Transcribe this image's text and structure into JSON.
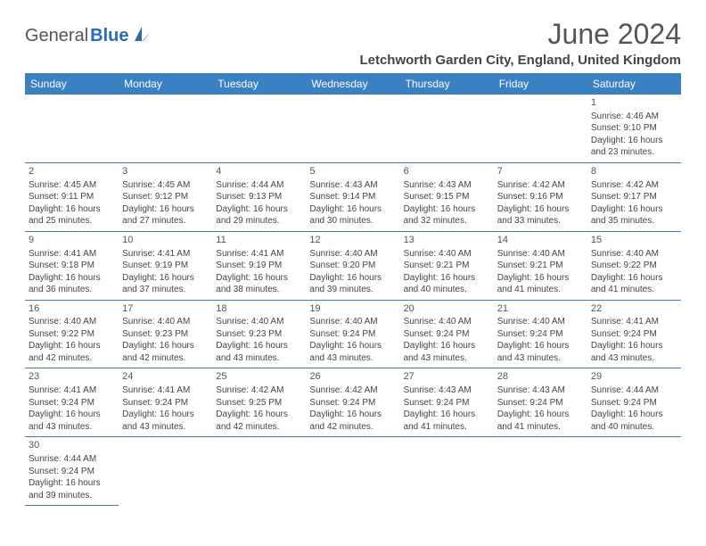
{
  "logo": {
    "part1": "General",
    "part2": "Blue"
  },
  "title": "June 2024",
  "location": "Letchworth Garden City, England, United Kingdom",
  "colors": {
    "header_bg": "#3a81c4",
    "header_text": "#ffffff",
    "border": "#3a81c4",
    "logo_blue": "#2a6cb3"
  },
  "day_headers": [
    "Sunday",
    "Monday",
    "Tuesday",
    "Wednesday",
    "Thursday",
    "Friday",
    "Saturday"
  ],
  "weeks": [
    [
      null,
      null,
      null,
      null,
      null,
      null,
      {
        "n": "1",
        "sr": "4:46 AM",
        "ss": "9:10 PM",
        "dl": "16 hours and 23 minutes."
      }
    ],
    [
      {
        "n": "2",
        "sr": "4:45 AM",
        "ss": "9:11 PM",
        "dl": "16 hours and 25 minutes."
      },
      {
        "n": "3",
        "sr": "4:45 AM",
        "ss": "9:12 PM",
        "dl": "16 hours and 27 minutes."
      },
      {
        "n": "4",
        "sr": "4:44 AM",
        "ss": "9:13 PM",
        "dl": "16 hours and 29 minutes."
      },
      {
        "n": "5",
        "sr": "4:43 AM",
        "ss": "9:14 PM",
        "dl": "16 hours and 30 minutes."
      },
      {
        "n": "6",
        "sr": "4:43 AM",
        "ss": "9:15 PM",
        "dl": "16 hours and 32 minutes."
      },
      {
        "n": "7",
        "sr": "4:42 AM",
        "ss": "9:16 PM",
        "dl": "16 hours and 33 minutes."
      },
      {
        "n": "8",
        "sr": "4:42 AM",
        "ss": "9:17 PM",
        "dl": "16 hours and 35 minutes."
      }
    ],
    [
      {
        "n": "9",
        "sr": "4:41 AM",
        "ss": "9:18 PM",
        "dl": "16 hours and 36 minutes."
      },
      {
        "n": "10",
        "sr": "4:41 AM",
        "ss": "9:19 PM",
        "dl": "16 hours and 37 minutes."
      },
      {
        "n": "11",
        "sr": "4:41 AM",
        "ss": "9:19 PM",
        "dl": "16 hours and 38 minutes."
      },
      {
        "n": "12",
        "sr": "4:40 AM",
        "ss": "9:20 PM",
        "dl": "16 hours and 39 minutes."
      },
      {
        "n": "13",
        "sr": "4:40 AM",
        "ss": "9:21 PM",
        "dl": "16 hours and 40 minutes."
      },
      {
        "n": "14",
        "sr": "4:40 AM",
        "ss": "9:21 PM",
        "dl": "16 hours and 41 minutes."
      },
      {
        "n": "15",
        "sr": "4:40 AM",
        "ss": "9:22 PM",
        "dl": "16 hours and 41 minutes."
      }
    ],
    [
      {
        "n": "16",
        "sr": "4:40 AM",
        "ss": "9:22 PM",
        "dl": "16 hours and 42 minutes."
      },
      {
        "n": "17",
        "sr": "4:40 AM",
        "ss": "9:23 PM",
        "dl": "16 hours and 42 minutes."
      },
      {
        "n": "18",
        "sr": "4:40 AM",
        "ss": "9:23 PM",
        "dl": "16 hours and 43 minutes."
      },
      {
        "n": "19",
        "sr": "4:40 AM",
        "ss": "9:24 PM",
        "dl": "16 hours and 43 minutes."
      },
      {
        "n": "20",
        "sr": "4:40 AM",
        "ss": "9:24 PM",
        "dl": "16 hours and 43 minutes."
      },
      {
        "n": "21",
        "sr": "4:40 AM",
        "ss": "9:24 PM",
        "dl": "16 hours and 43 minutes."
      },
      {
        "n": "22",
        "sr": "4:41 AM",
        "ss": "9:24 PM",
        "dl": "16 hours and 43 minutes."
      }
    ],
    [
      {
        "n": "23",
        "sr": "4:41 AM",
        "ss": "9:24 PM",
        "dl": "16 hours and 43 minutes."
      },
      {
        "n": "24",
        "sr": "4:41 AM",
        "ss": "9:24 PM",
        "dl": "16 hours and 43 minutes."
      },
      {
        "n": "25",
        "sr": "4:42 AM",
        "ss": "9:25 PM",
        "dl": "16 hours and 42 minutes."
      },
      {
        "n": "26",
        "sr": "4:42 AM",
        "ss": "9:24 PM",
        "dl": "16 hours and 42 minutes."
      },
      {
        "n": "27",
        "sr": "4:43 AM",
        "ss": "9:24 PM",
        "dl": "16 hours and 41 minutes."
      },
      {
        "n": "28",
        "sr": "4:43 AM",
        "ss": "9:24 PM",
        "dl": "16 hours and 41 minutes."
      },
      {
        "n": "29",
        "sr": "4:44 AM",
        "ss": "9:24 PM",
        "dl": "16 hours and 40 minutes."
      }
    ],
    [
      {
        "n": "30",
        "sr": "4:44 AM",
        "ss": "9:24 PM",
        "dl": "16 hours and 39 minutes."
      },
      null,
      null,
      null,
      null,
      null,
      null
    ]
  ],
  "labels": {
    "sunrise": "Sunrise:",
    "sunset": "Sunset:",
    "daylight": "Daylight:"
  }
}
